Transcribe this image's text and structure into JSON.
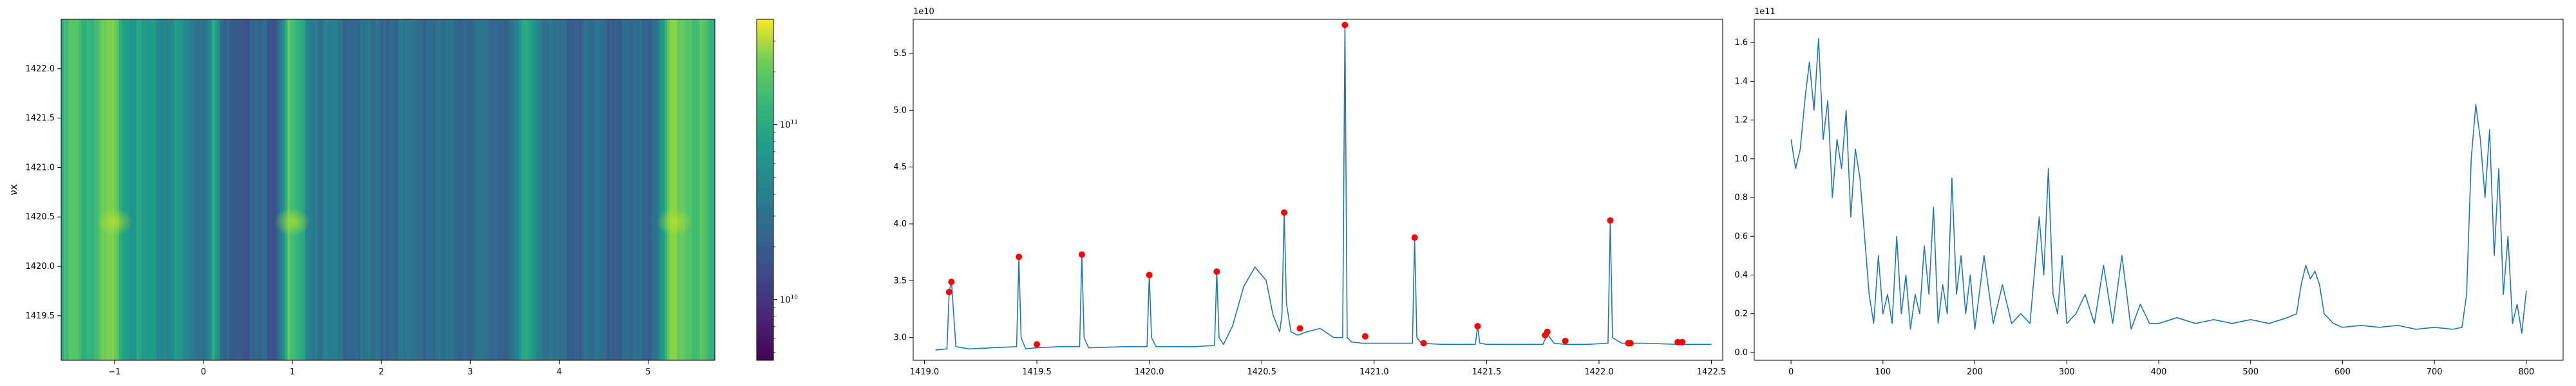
{
  "chart_data": [
    {
      "type": "heatmap",
      "title": "",
      "xlabel": "",
      "ylabel": "νx",
      "xlim": [
        -1.6,
        5.75
      ],
      "ylim": [
        1419.05,
        1422.5
      ],
      "x_ticks": [
        "−1",
        "0",
        "1",
        "2",
        "3",
        "4",
        "5"
      ],
      "x_tick_values": [
        -1,
        0,
        1,
        2,
        3,
        4,
        5
      ],
      "y_ticks": [
        "1419.5",
        "1420.0",
        "1420.5",
        "1421.0",
        "1421.5",
        "1422.0"
      ],
      "y_tick_values": [
        1419.5,
        1420.0,
        1420.5,
        1421.0,
        1421.5,
        1422.0
      ],
      "colormap": "viridis",
      "color_scale": "log",
      "colorbar_ticks": [
        {
          "base": "10",
          "exp": "11",
          "value": 100000000000.0
        },
        {
          "base": "10",
          "exp": "10",
          "value": 10000000000.0
        }
      ],
      "colorbar_range": [
        4500000000.0,
        400000000000.0
      ],
      "column_profile": [
        {
          "x": -1.6,
          "level": 0.62
        },
        {
          "x": -1.5,
          "level": 0.72
        },
        {
          "x": -1.35,
          "level": 0.66
        },
        {
          "x": -1.2,
          "level": 0.7
        },
        {
          "x": -1.05,
          "level": 0.78
        },
        {
          "x": -0.9,
          "level": 0.6
        },
        {
          "x": -0.75,
          "level": 0.55
        },
        {
          "x": -0.6,
          "level": 0.5
        },
        {
          "x": -0.45,
          "level": 0.48
        },
        {
          "x": -0.3,
          "level": 0.52
        },
        {
          "x": -0.15,
          "level": 0.42
        },
        {
          "x": 0.0,
          "level": 0.4
        },
        {
          "x": 0.1,
          "level": 0.62
        },
        {
          "x": 0.2,
          "level": 0.3
        },
        {
          "x": 0.35,
          "level": 0.33
        },
        {
          "x": 0.5,
          "level": 0.3
        },
        {
          "x": 0.65,
          "level": 0.32
        },
        {
          "x": 0.8,
          "level": 0.3
        },
        {
          "x": 0.95,
          "level": 0.72
        },
        {
          "x": 1.05,
          "level": 0.6
        },
        {
          "x": 1.2,
          "level": 0.45
        },
        {
          "x": 1.35,
          "level": 0.4
        },
        {
          "x": 1.5,
          "level": 0.38
        },
        {
          "x": 1.7,
          "level": 0.36
        },
        {
          "x": 1.9,
          "level": 0.35
        },
        {
          "x": 2.1,
          "level": 0.36
        },
        {
          "x": 2.3,
          "level": 0.37
        },
        {
          "x": 2.5,
          "level": 0.36
        },
        {
          "x": 2.7,
          "level": 0.35
        },
        {
          "x": 2.9,
          "level": 0.36
        },
        {
          "x": 3.1,
          "level": 0.35
        },
        {
          "x": 3.3,
          "level": 0.34
        },
        {
          "x": 3.5,
          "level": 0.36
        },
        {
          "x": 3.6,
          "level": 0.62
        },
        {
          "x": 3.7,
          "level": 0.55
        },
        {
          "x": 3.85,
          "level": 0.36
        },
        {
          "x": 4.0,
          "level": 0.34
        },
        {
          "x": 4.2,
          "level": 0.33
        },
        {
          "x": 4.4,
          "level": 0.34
        },
        {
          "x": 4.6,
          "level": 0.33
        },
        {
          "x": 4.8,
          "level": 0.32
        },
        {
          "x": 5.0,
          "level": 0.34
        },
        {
          "x": 5.15,
          "level": 0.5
        },
        {
          "x": 5.25,
          "level": 0.82
        },
        {
          "x": 5.35,
          "level": 0.78
        },
        {
          "x": 5.5,
          "level": 0.72
        },
        {
          "x": 5.65,
          "level": 0.66
        },
        {
          "x": 5.75,
          "level": 0.6
        }
      ],
      "hotspot_rows": [
        1420.45
      ],
      "hotspot_columns": [
        -1.0,
        1.0,
        5.3
      ]
    },
    {
      "type": "line",
      "title": "",
      "xlabel": "",
      "ylabel": "",
      "xlim": [
        1418.95,
        1422.55
      ],
      "ylim": [
        2.8,
        5.8
      ],
      "offset_label": "1e10",
      "x_ticks": [
        "1419.0",
        "1419.5",
        "1420.0",
        "1420.5",
        "1421.0",
        "1421.5",
        "1422.0",
        "1422.5"
      ],
      "x_tick_values": [
        1419.0,
        1419.5,
        1420.0,
        1420.5,
        1421.0,
        1421.5,
        1422.0,
        1422.5
      ],
      "y_ticks": [
        "3.0",
        "3.5",
        "4.0",
        "4.5",
        "5.0",
        "5.5"
      ],
      "y_tick_values": [
        3.0,
        3.5,
        4.0,
        4.5,
        5.0,
        5.5
      ],
      "series": [
        {
          "color": "#1f77b4",
          "x": [
            1419.05,
            1419.1,
            1419.11,
            1419.12,
            1419.13,
            1419.14,
            1419.2,
            1419.3,
            1419.41,
            1419.42,
            1419.43,
            1419.45,
            1419.5,
            1419.6,
            1419.69,
            1419.7,
            1419.71,
            1419.73,
            1419.9,
            1419.99,
            1420.0,
            1420.01,
            1420.03,
            1420.2,
            1420.29,
            1420.3,
            1420.31,
            1420.33,
            1420.37,
            1420.42,
            1420.47,
            1420.52,
            1420.55,
            1420.58,
            1420.59,
            1420.6,
            1420.61,
            1420.63,
            1420.66,
            1420.7,
            1420.76,
            1420.82,
            1420.86,
            1420.87,
            1420.88,
            1420.9,
            1420.95,
            1421.05,
            1421.17,
            1421.18,
            1421.19,
            1421.21,
            1421.3,
            1421.45,
            1421.46,
            1421.47,
            1421.5,
            1421.65,
            1421.75,
            1421.77,
            1421.8,
            1421.85,
            1421.95,
            1422.04,
            1422.05,
            1422.06,
            1422.1,
            1422.2,
            1422.35,
            1422.5
          ],
          "y": [
            2.89,
            2.9,
            3.4,
            3.5,
            3.2,
            2.92,
            2.9,
            2.91,
            2.92,
            3.7,
            3.0,
            2.9,
            2.91,
            2.92,
            2.92,
            3.72,
            3.0,
            2.91,
            2.92,
            2.92,
            3.55,
            3.0,
            2.92,
            2.92,
            2.93,
            3.58,
            3.0,
            2.94,
            3.1,
            3.45,
            3.62,
            3.5,
            3.2,
            3.05,
            3.2,
            4.1,
            3.3,
            3.05,
            3.02,
            3.05,
            3.08,
            3.0,
            3.0,
            5.75,
            3.0,
            2.96,
            2.95,
            2.95,
            2.95,
            3.87,
            3.0,
            2.95,
            2.94,
            2.94,
            3.1,
            2.95,
            2.94,
            2.94,
            2.94,
            3.03,
            2.95,
            2.94,
            2.94,
            2.95,
            4.02,
            3.0,
            2.95,
            2.95,
            2.94,
            2.94
          ]
        }
      ],
      "peaks": {
        "color": "#ff0000",
        "x": [
          1419.11,
          1419.12,
          1419.42,
          1419.5,
          1419.7,
          1420.0,
          1420.3,
          1420.6,
          1420.67,
          1420.87,
          1420.96,
          1421.18,
          1421.22,
          1421.46,
          1421.76,
          1421.77,
          1421.85,
          1422.05,
          1422.13,
          1422.14,
          1422.35,
          1422.37
        ],
        "y": [
          3.4,
          3.49,
          3.71,
          2.94,
          3.73,
          3.55,
          3.58,
          4.1,
          3.08,
          5.75,
          3.01,
          3.88,
          2.95,
          3.1,
          3.02,
          3.05,
          2.97,
          4.03,
          2.95,
          2.95,
          2.96,
          2.96
        ]
      }
    },
    {
      "type": "line",
      "title": "",
      "xlabel": "",
      "ylabel": "",
      "xlim": [
        -40,
        840
      ],
      "ylim": [
        -0.04,
        1.72
      ],
      "offset_label": "1e11",
      "x_ticks": [
        "0",
        "100",
        "200",
        "300",
        "400",
        "500",
        "600",
        "700",
        "800"
      ],
      "x_tick_values": [
        0,
        100,
        200,
        300,
        400,
        500,
        600,
        700,
        800
      ],
      "y_ticks": [
        "0.0",
        "0.2",
        "0.4",
        "0.6",
        "0.8",
        "1.0",
        "1.2",
        "1.4",
        "1.6"
      ],
      "y_tick_values": [
        0.0,
        0.2,
        0.4,
        0.6,
        0.8,
        1.0,
        1.2,
        1.4,
        1.6
      ],
      "series": [
        {
          "color": "#1f77b4",
          "x": [
            0,
            5,
            10,
            15,
            20,
            25,
            30,
            35,
            40,
            45,
            50,
            55,
            60,
            65,
            70,
            75,
            80,
            85,
            90,
            95,
            100,
            105,
            110,
            115,
            120,
            125,
            130,
            135,
            140,
            145,
            150,
            155,
            160,
            165,
            170,
            175,
            180,
            185,
            190,
            195,
            200,
            210,
            220,
            230,
            240,
            250,
            260,
            270,
            275,
            280,
            285,
            290,
            295,
            300,
            310,
            320,
            330,
            340,
            350,
            360,
            370,
            380,
            390,
            400,
            420,
            440,
            460,
            480,
            500,
            520,
            540,
            550,
            555,
            560,
            565,
            570,
            575,
            580,
            590,
            600,
            620,
            640,
            660,
            680,
            700,
            720,
            730,
            735,
            740,
            745,
            750,
            755,
            760,
            765,
            770,
            775,
            780,
            785,
            790,
            795,
            800
          ],
          "y": [
            1.1,
            0.95,
            1.05,
            1.3,
            1.5,
            1.25,
            1.62,
            1.1,
            1.3,
            0.8,
            1.1,
            0.95,
            1.25,
            0.7,
            1.05,
            0.9,
            0.6,
            0.3,
            0.15,
            0.5,
            0.2,
            0.3,
            0.15,
            0.6,
            0.2,
            0.4,
            0.12,
            0.3,
            0.2,
            0.55,
            0.3,
            0.75,
            0.15,
            0.35,
            0.2,
            0.9,
            0.3,
            0.5,
            0.2,
            0.4,
            0.12,
            0.5,
            0.15,
            0.35,
            0.15,
            0.2,
            0.15,
            0.7,
            0.4,
            0.95,
            0.3,
            0.2,
            0.5,
            0.15,
            0.2,
            0.3,
            0.15,
            0.45,
            0.15,
            0.5,
            0.12,
            0.25,
            0.15,
            0.15,
            0.18,
            0.15,
            0.17,
            0.15,
            0.17,
            0.15,
            0.18,
            0.2,
            0.35,
            0.45,
            0.38,
            0.42,
            0.35,
            0.2,
            0.15,
            0.13,
            0.14,
            0.13,
            0.14,
            0.12,
            0.13,
            0.12,
            0.13,
            0.3,
            1.0,
            1.28,
            1.1,
            0.8,
            1.15,
            0.5,
            0.95,
            0.3,
            0.6,
            0.15,
            0.25,
            0.1,
            0.32
          ]
        }
      ]
    }
  ]
}
